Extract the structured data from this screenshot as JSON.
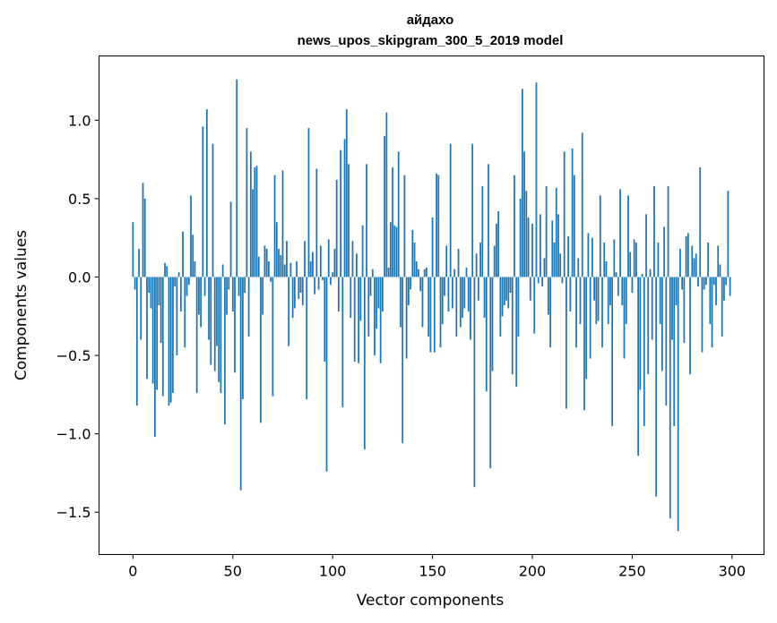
{
  "chart_data": {
    "type": "bar",
    "title": "айдахо",
    "subtitle": "news_upos_skipgram_300_5_2019 model",
    "xlabel": "Vector components",
    "ylabel": "Components values",
    "xlim": [
      -17,
      316
    ],
    "ylim": [
      -1.77,
      1.41
    ],
    "xticks": [
      0,
      50,
      100,
      150,
      200,
      250,
      300
    ],
    "yticks": [
      -1.5,
      -1.0,
      -0.5,
      0.0,
      0.5,
      1.0
    ],
    "ytick_labels": [
      "−1.5",
      "−1.0",
      "−0.5",
      "0.0",
      "0.5",
      "1.0"
    ],
    "bar_color": "#1f77b4",
    "values": [
      0.35,
      -0.08,
      -0.82,
      0.18,
      -0.4,
      0.6,
      0.5,
      -0.65,
      -0.1,
      -0.2,
      -0.68,
      -1.02,
      -0.72,
      -0.18,
      -0.42,
      -0.76,
      0.09,
      0.07,
      -0.82,
      -0.8,
      -0.74,
      -0.06,
      -0.5,
      0.03,
      -0.22,
      0.29,
      -0.45,
      -0.12,
      -0.05,
      0.52,
      0.27,
      0.1,
      -0.74,
      -0.24,
      -0.32,
      0.96,
      -0.12,
      1.07,
      -0.4,
      -0.56,
      0.85,
      -0.6,
      -0.44,
      -0.67,
      -0.74,
      0.08,
      -0.94,
      -0.24,
      -0.08,
      0.48,
      -0.22,
      -0.61,
      1.26,
      -0.12,
      -1.36,
      -0.78,
      -0.1,
      0.95,
      -0.38,
      0.8,
      0.56,
      0.7,
      0.71,
      0.13,
      -0.93,
      -0.24,
      0.2,
      0.18,
      0.1,
      -0.03,
      -0.76,
      0.65,
      0.35,
      0.18,
      0.14,
      0.68,
      0.08,
      0.23,
      -0.44,
      0.09,
      -0.26,
      -0.2,
      0.1,
      -0.14,
      -0.1,
      -0.18,
      0.23,
      -0.78,
      0.95,
      0.1,
      0.16,
      -0.11,
      0.69,
      -0.08,
      0.2,
      -0.02,
      -0.54,
      -1.24,
      0.24,
      -0.05,
      0.03,
      0.18,
      0.62,
      -0.22,
      0.81,
      -0.83,
      0.88,
      1.07,
      0.72,
      -0.26,
      0.23,
      -0.54,
      0.15,
      -0.55,
      -0.28,
      0.33,
      -1.1,
      0.72,
      -0.38,
      -0.12,
      0.05,
      -0.5,
      -0.33,
      -0.2,
      -0.55,
      -0.22,
      0.9,
      1.05,
      0.06,
      0.35,
      0.7,
      0.33,
      0.32,
      0.8,
      -0.32,
      -1.06,
      0.65,
      -0.52,
      -0.18,
      -0.08,
      0.3,
      0.22,
      0.1,
      0.05,
      -0.09,
      -0.32,
      0.05,
      0.06,
      -0.38,
      -0.48,
      0.38,
      -0.48,
      0.66,
      0.65,
      -0.45,
      -0.3,
      -0.12,
      0.2,
      -0.22,
      0.85,
      -0.2,
      0.05,
      -0.38,
      0.18,
      -0.32,
      -0.26,
      -0.2,
      0.06,
      -0.22,
      -0.4,
      0.85,
      -1.34,
      0.15,
      -0.15,
      0.22,
      0.58,
      -0.26,
      -0.73,
      0.72,
      -1.22,
      -0.6,
      0.2,
      0.34,
      0.42,
      -0.38,
      -0.25,
      -0.18,
      -0.15,
      -0.2,
      -0.1,
      -0.62,
      0.65,
      -0.7,
      -0.38,
      0.5,
      1.2,
      0.8,
      0.55,
      0.38,
      -0.15,
      0.34,
      -0.36,
      1.24,
      -0.04,
      0.4,
      -0.06,
      0.12,
      0.58,
      -0.24,
      -0.45,
      0.36,
      0.22,
      0.57,
      0.4,
      0.15,
      -0.04,
      0.8,
      -0.84,
      0.26,
      -0.22,
      0.82,
      0.65,
      -0.45,
      0.12,
      -0.3,
      0.92,
      -0.85,
      -0.65,
      0.28,
      -0.52,
      0.25,
      -0.15,
      -0.3,
      -0.28,
      0.52,
      -0.45,
      0.22,
      0.1,
      -0.3,
      -0.18,
      -0.95,
      0.24,
      0.03,
      -0.12,
      0.56,
      -0.18,
      -0.52,
      -0.3,
      0.52,
      0.16,
      -0.1,
      0.24,
      0.22,
      -1.14,
      -0.72,
      0.02,
      -0.95,
      0.4,
      -0.62,
      0.05,
      -0.4,
      0.58,
      -1.4,
      0.22,
      -0.3,
      -0.6,
      0.32,
      -0.82,
      0.58,
      -1.54,
      -0.4,
      -0.95,
      -0.18,
      -1.62,
      0.18,
      -0.08,
      -0.42,
      0.26,
      0.28,
      -0.62,
      0.2,
      0.12,
      0.15,
      -0.06,
      0.7,
      -0.48,
      -0.08,
      -0.05,
      0.22,
      -0.3,
      -0.45,
      -0.05,
      -0.18,
      0.2,
      0.08,
      -0.38,
      -0.15,
      -0.05,
      0.55,
      -0.12
    ]
  }
}
